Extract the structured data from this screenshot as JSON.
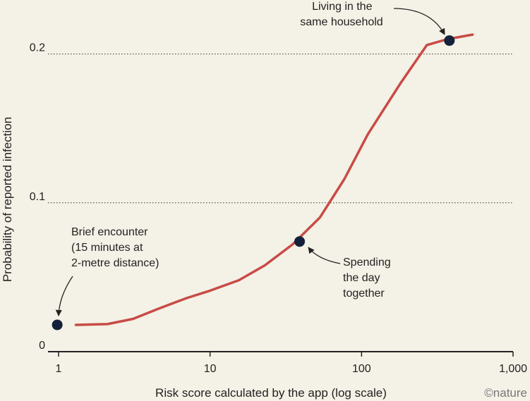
{
  "chart_data": {
    "type": "line",
    "xscale": "log",
    "xlabel": "Risk score calculated by the app (log scale)",
    "ylabel": "Probability of reported infection",
    "xlim": [
      1,
      1000
    ],
    "ylim": [
      0,
      0.22
    ],
    "x_ticks": [
      {
        "value": 1,
        "label": "1"
      },
      {
        "value": 10,
        "label": "10"
      },
      {
        "value": 100,
        "label": "100"
      },
      {
        "value": 1000,
        "label": "1,000"
      }
    ],
    "y_ticks": [
      {
        "value": 0,
        "label": "0"
      },
      {
        "value": 0.1,
        "label": "0.1"
      },
      {
        "value": 0.2,
        "label": "0.2"
      }
    ],
    "grid": "horizontal-dotted",
    "series": [
      {
        "color": "#c84b46",
        "x": [
          1.3,
          2.1,
          3.1,
          4.6,
          7,
          10,
          15.5,
          23,
          35,
          53,
          77,
          110,
          180,
          270,
          370,
          540
        ],
        "y": [
          0.018,
          0.0185,
          0.022,
          0.029,
          0.036,
          0.041,
          0.048,
          0.058,
          0.072,
          0.09,
          0.116,
          0.146,
          0.18,
          0.206,
          0.21,
          0.213
        ]
      }
    ],
    "points": [
      {
        "x": 0.98,
        "y": 0.018,
        "color": "#13213a"
      },
      {
        "x": 39,
        "y": 0.074,
        "color": "#13213a"
      },
      {
        "x": 380,
        "y": 0.209,
        "color": "#13213a"
      }
    ],
    "annotations": [
      {
        "lines": [
          "Brief encounter",
          "(15 minutes at",
          "2-metre distance)"
        ]
      },
      {
        "lines": [
          "Spending",
          "the day",
          "together"
        ]
      },
      {
        "lines": [
          "Living in the",
          "same household"
        ]
      }
    ]
  },
  "credit": "©nature"
}
